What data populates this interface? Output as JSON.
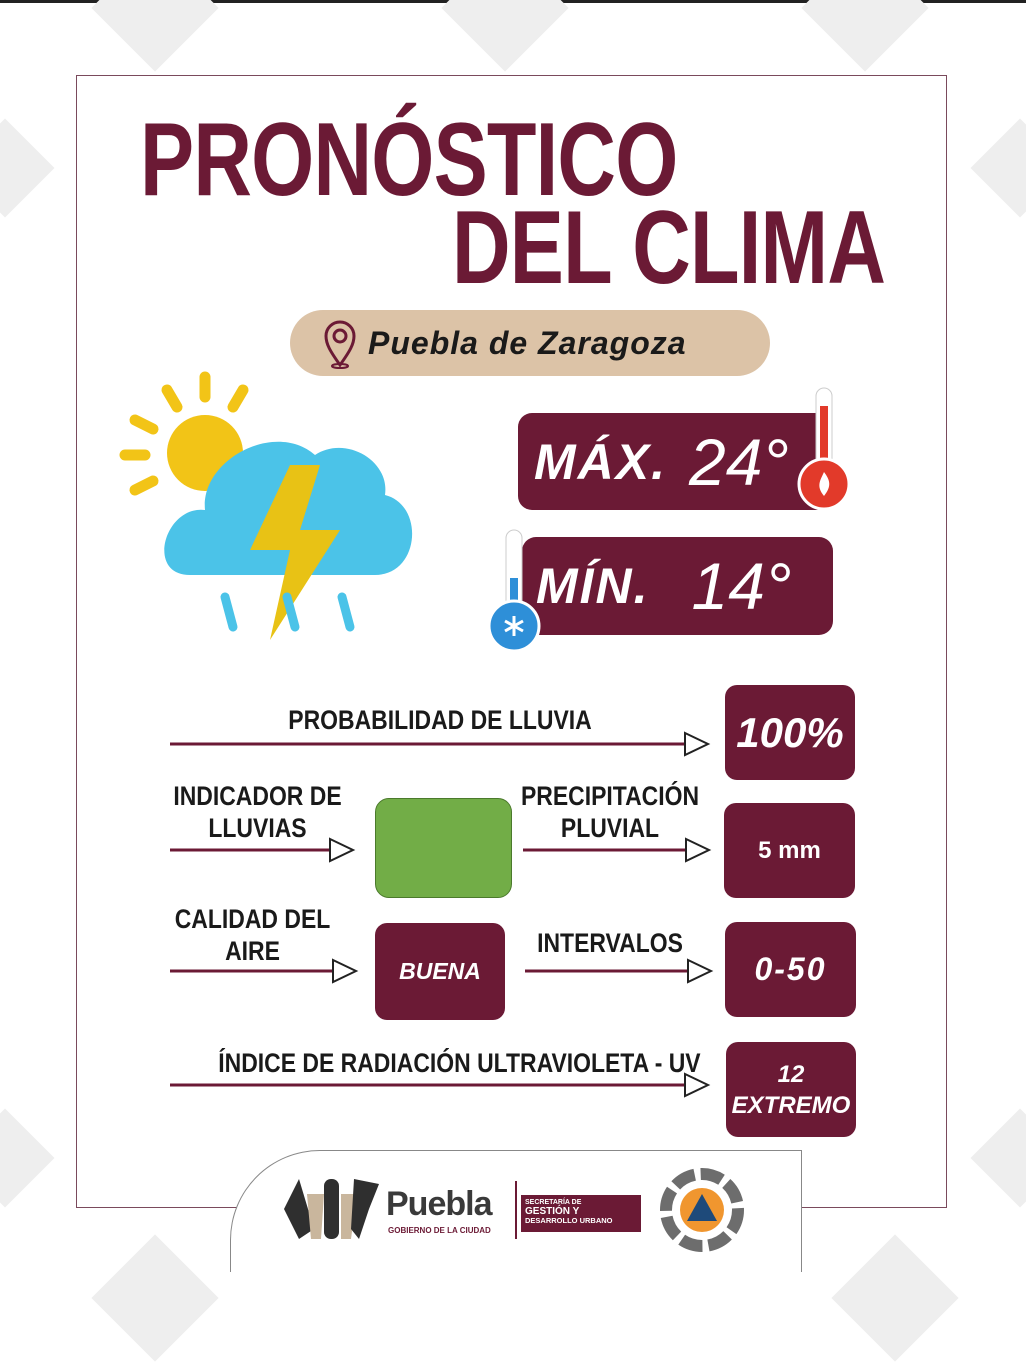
{
  "title": {
    "line1": "PRONÓSTICO",
    "line2": "DEL CLIMA"
  },
  "location": {
    "name": "Puebla de Zaragoza",
    "icon": "map-pin-icon"
  },
  "weather_icon": "thunderstorm-partly-sunny-icon",
  "temperature": {
    "max_label": "MÁX.",
    "max_value": "24°",
    "min_label": "MÍN.",
    "min_value": "14°"
  },
  "rows": {
    "rain_probability": {
      "label": "PROBABILIDAD DE LLUVIA",
      "value": "100%"
    },
    "rain_indicator": {
      "label_line1": "INDICADOR DE",
      "label_line2": "LLUVIAS",
      "color": "#72ad47"
    },
    "precipitation": {
      "label_line1": "PRECIPITACIÓN",
      "label_line2": "PLUVIAL",
      "value": "5 mm"
    },
    "air_quality": {
      "label_line1": "CALIDAD DEL",
      "label_line2": "AIRE",
      "value": "BUENA"
    },
    "intervals": {
      "label": "INTERVALOS",
      "value": "0-50"
    },
    "uv_index": {
      "label": "ÍNDICE DE RADIACIÓN ULTRAVIOLETA - UV",
      "value_line1": "12",
      "value_line2": "EXTREMO"
    }
  },
  "footer": {
    "puebla_logo": "Puebla",
    "puebla_subtitle": "GOBIERNO DE LA CIUDAD",
    "secretaria_line1": "SECRETARÍA DE",
    "secretaria_line2": "GESTIÓN Y",
    "secretaria_line3": "DESARROLLO URBANO",
    "civil_protection_logo": "civil-protection-icon"
  },
  "colors": {
    "maroon": "#6b1a35",
    "beige": "#dcc3a7",
    "green": "#72ad47",
    "cloud": "#4bc3e8",
    "bolt": "#e8c215",
    "sun": "#f2c417"
  }
}
